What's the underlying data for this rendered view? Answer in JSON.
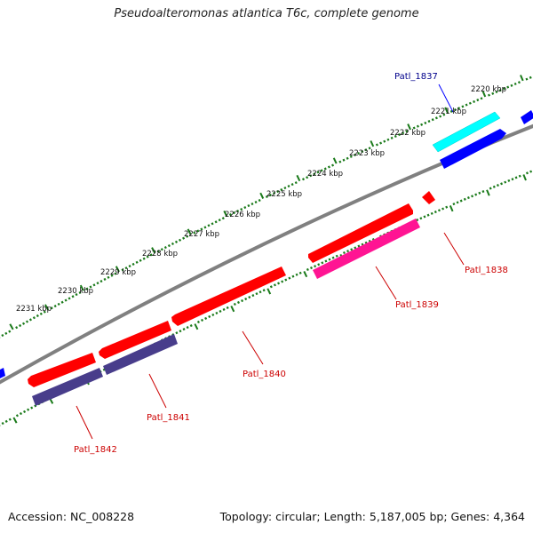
{
  "title": "Pseudoalteromonas atlantica T6c, complete genome",
  "footer": {
    "accession": "Accession: NC_008228",
    "stats": "Topology: circular; Length: 5,187,005 bp; Genes: 4,364"
  },
  "scale": {
    "ticks": [
      "2220 kbp",
      "2221 kbp",
      "2222 kbp",
      "2223 kbp",
      "2224 kbp",
      "2225 kbp",
      "2226 kbp",
      "2227 kbp",
      "2228 kbp",
      "2229 kbp",
      "2230 kbp",
      "2231 kbp"
    ]
  },
  "genes": [
    {
      "label": "Patl_1837",
      "color": "#00008b"
    },
    {
      "label": "Patl_1838",
      "color": "#cc0000"
    },
    {
      "label": "Patl_1839",
      "color": "#cc0000"
    },
    {
      "label": "Patl_1840",
      "color": "#cc0000"
    },
    {
      "label": "Patl_1841",
      "color": "#cc0000"
    },
    {
      "label": "Patl_1842",
      "color": "#cc0000"
    }
  ],
  "colors": {
    "backbone": "#808080",
    "scale_dots": "#1a7a1a",
    "gene_red": "#ff0000",
    "gene_blue": "#0000ff",
    "gene_cyan": "#00ffff",
    "gene_pink": "#ff1493",
    "gene_slate": "#483d8b"
  }
}
